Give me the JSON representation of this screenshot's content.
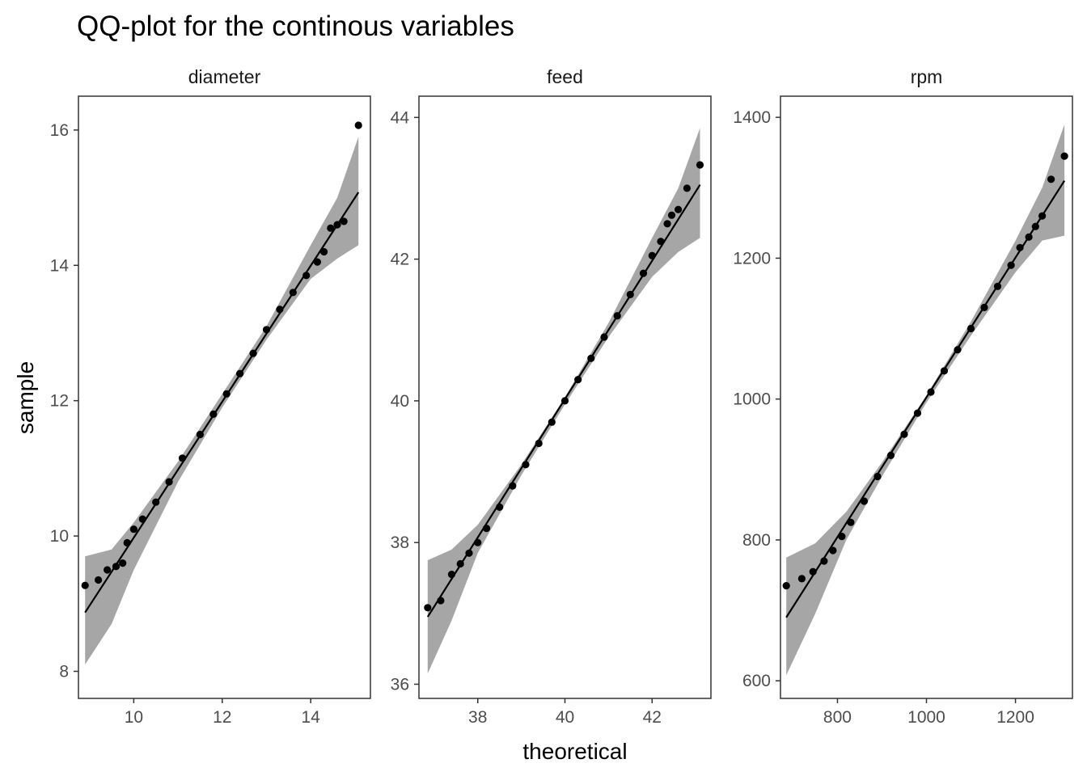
{
  "chart_data": {
    "type": "scatter",
    "title": "QQ-plot for the continous variables",
    "xlabel": "theoretical",
    "ylabel": "sample",
    "grid": false,
    "band_color": "#a6a6a6",
    "point_color": "#000000",
    "line_color": "#000000",
    "panels": [
      {
        "name": "diameter",
        "xlim": [
          8.75,
          15.35
        ],
        "ylim": [
          7.6,
          16.5
        ],
        "xticks": [
          10,
          12,
          14
        ],
        "yticks": [
          8,
          10,
          12,
          14,
          16
        ],
        "line": [
          [
            8.9,
            8.87
          ],
          [
            15.08,
            15.08
          ]
        ],
        "band": [
          [
            8.9,
            8.1,
            9.7
          ],
          [
            9.5,
            8.7,
            9.8
          ],
          [
            10.0,
            9.5,
            10.2
          ],
          [
            11.0,
            10.8,
            11.1
          ],
          [
            12.0,
            11.9,
            12.1
          ],
          [
            13.0,
            12.9,
            13.1
          ],
          [
            14.0,
            13.8,
            14.3
          ],
          [
            14.6,
            14.1,
            15.0
          ],
          [
            15.08,
            14.3,
            15.9
          ]
        ],
        "points": [
          [
            8.9,
            9.27
          ],
          [
            9.2,
            9.35
          ],
          [
            9.4,
            9.5
          ],
          [
            9.6,
            9.55
          ],
          [
            9.75,
            9.6
          ],
          [
            9.85,
            9.9
          ],
          [
            10.0,
            10.1
          ],
          [
            10.2,
            10.25
          ],
          [
            10.5,
            10.5
          ],
          [
            10.8,
            10.8
          ],
          [
            11.1,
            11.15
          ],
          [
            11.5,
            11.5
          ],
          [
            11.8,
            11.8
          ],
          [
            12.1,
            12.1
          ],
          [
            12.4,
            12.4
          ],
          [
            12.7,
            12.7
          ],
          [
            13.0,
            13.05
          ],
          [
            13.3,
            13.35
          ],
          [
            13.6,
            13.6
          ],
          [
            13.9,
            13.85
          ],
          [
            14.15,
            14.05
          ],
          [
            14.3,
            14.2
          ],
          [
            14.45,
            14.55
          ],
          [
            14.6,
            14.6
          ],
          [
            14.75,
            14.65
          ],
          [
            15.08,
            16.07
          ]
        ]
      },
      {
        "name": "feed",
        "xlim": [
          36.65,
          43.35
        ],
        "ylim": [
          35.8,
          44.3
        ],
        "xticks": [
          38,
          40,
          42
        ],
        "yticks": [
          36,
          38,
          40,
          42,
          44
        ],
        "line": [
          [
            36.85,
            36.95
          ],
          [
            43.1,
            43.05
          ]
        ],
        "band": [
          [
            36.85,
            36.15,
            37.75
          ],
          [
            37.4,
            36.9,
            37.9
          ],
          [
            38.0,
            37.85,
            38.25
          ],
          [
            39.0,
            38.95,
            39.1
          ],
          [
            40.0,
            39.95,
            40.05
          ],
          [
            41.0,
            40.9,
            41.1
          ],
          [
            42.0,
            41.75,
            42.3
          ],
          [
            42.6,
            42.1,
            43.0
          ],
          [
            43.1,
            42.3,
            43.85
          ]
        ],
        "points": [
          [
            36.85,
            37.08
          ],
          [
            37.15,
            37.18
          ],
          [
            37.4,
            37.55
          ],
          [
            37.6,
            37.7
          ],
          [
            37.8,
            37.85
          ],
          [
            38.0,
            38.0
          ],
          [
            38.2,
            38.2
          ],
          [
            38.5,
            38.5
          ],
          [
            38.8,
            38.8
          ],
          [
            39.1,
            39.1
          ],
          [
            39.4,
            39.4
          ],
          [
            39.7,
            39.7
          ],
          [
            40.0,
            40.0
          ],
          [
            40.3,
            40.3
          ],
          [
            40.6,
            40.6
          ],
          [
            40.9,
            40.9
          ],
          [
            41.2,
            41.2
          ],
          [
            41.5,
            41.5
          ],
          [
            41.8,
            41.8
          ],
          [
            42.0,
            42.05
          ],
          [
            42.2,
            42.25
          ],
          [
            42.35,
            42.5
          ],
          [
            42.45,
            42.62
          ],
          [
            42.6,
            42.7
          ],
          [
            42.8,
            43.0
          ],
          [
            43.1,
            43.33
          ]
        ]
      },
      {
        "name": "rpm",
        "xlim": [
          672,
          1328
        ],
        "ylim": [
          575,
          1430
        ],
        "xticks": [
          800,
          1000,
          1200
        ],
        "yticks": [
          600,
          800,
          1000,
          1200,
          1400
        ],
        "line": [
          [
            685,
            690
          ],
          [
            1310,
            1310
          ]
        ],
        "band": [
          [
            685,
            608,
            775
          ],
          [
            750,
            695,
            795
          ],
          [
            820,
            800,
            840
          ],
          [
            900,
            890,
            910
          ],
          [
            1000,
            995,
            1005
          ],
          [
            1100,
            1090,
            1110
          ],
          [
            1200,
            1180,
            1225
          ],
          [
            1260,
            1225,
            1300
          ],
          [
            1310,
            1232,
            1390
          ]
        ],
        "points": [
          [
            685,
            735
          ],
          [
            720,
            745
          ],
          [
            745,
            755
          ],
          [
            770,
            770
          ],
          [
            790,
            785
          ],
          [
            810,
            805
          ],
          [
            830,
            825
          ],
          [
            860,
            855
          ],
          [
            890,
            890
          ],
          [
            920,
            920
          ],
          [
            950,
            950
          ],
          [
            980,
            980
          ],
          [
            1010,
            1010
          ],
          [
            1040,
            1040
          ],
          [
            1070,
            1070
          ],
          [
            1100,
            1100
          ],
          [
            1130,
            1130
          ],
          [
            1160,
            1160
          ],
          [
            1190,
            1190
          ],
          [
            1210,
            1215
          ],
          [
            1230,
            1230
          ],
          [
            1245,
            1245
          ],
          [
            1260,
            1260
          ],
          [
            1280,
            1312
          ],
          [
            1310,
            1345
          ]
        ]
      }
    ]
  }
}
